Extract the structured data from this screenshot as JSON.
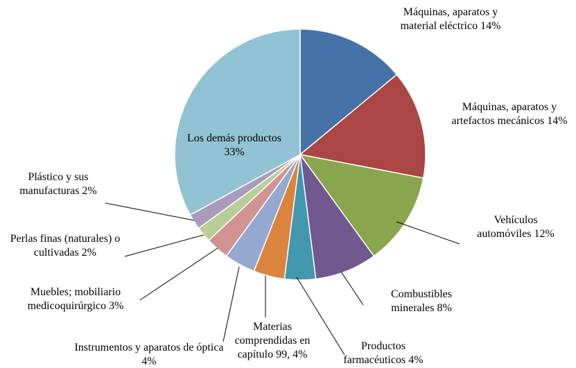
{
  "chart_data": {
    "type": "pie",
    "categories": [
      "Máquinas, aparatos y material eléctrico",
      "Máquinas, aparatos y artefactos mecánicos",
      "Vehículos automóviles",
      "Combustibles minerales",
      "Productos farmacéuticos",
      "Materias comprendidas en capítulo 99,",
      "Instrumentos y aparatos de óptica",
      "Muebles; mobiliario medicoquirúrgico",
      "Perlas finas (naturales) o cultivadas",
      "Plástico y sus manufacturas",
      "Los demás productos"
    ],
    "values": [
      14,
      14,
      12,
      8,
      4,
      4,
      4,
      3,
      2,
      2,
      33
    ],
    "value_labels": [
      "14%",
      "14%",
      "12%",
      "8%",
      "4%",
      "4%",
      "4%",
      "3%",
      "2%",
      "2%",
      "33%"
    ],
    "colors": [
      "#4572A7",
      "#AA4643",
      "#89A54E",
      "#71588F",
      "#4198AF",
      "#DB843D",
      "#93A9CF",
      "#D19392",
      "#B9CD96",
      "#A99BBD",
      "#92C3D4"
    ]
  }
}
